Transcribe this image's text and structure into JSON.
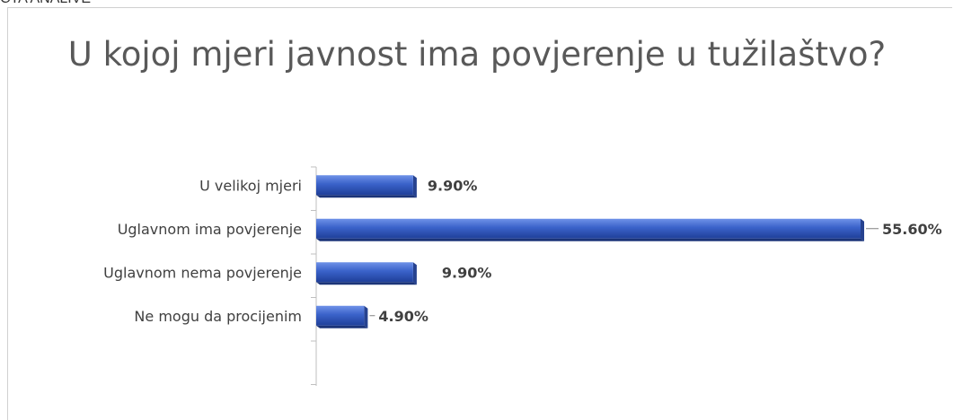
{
  "header_fragment": "CTA ANALIVE",
  "chart_data": {
    "type": "bar",
    "orientation": "horizontal",
    "title": "U kojoj mjeri javnost ima povjerenje u tužilaštvo?",
    "categories": [
      "U velikoj mjeri",
      "Uglavnom ima povjerenje",
      "Uglavnom nema povjerenje",
      "Ne mogu da procijenim"
    ],
    "values": [
      9.9,
      55.6,
      9.9,
      4.9
    ],
    "data_labels": [
      "9.90%",
      "55.60%",
      "9.90%",
      "4.90%"
    ],
    "xlim": [
      0,
      55.6
    ],
    "grid": false,
    "legend": "none",
    "bar_color": "#3a62c9"
  }
}
